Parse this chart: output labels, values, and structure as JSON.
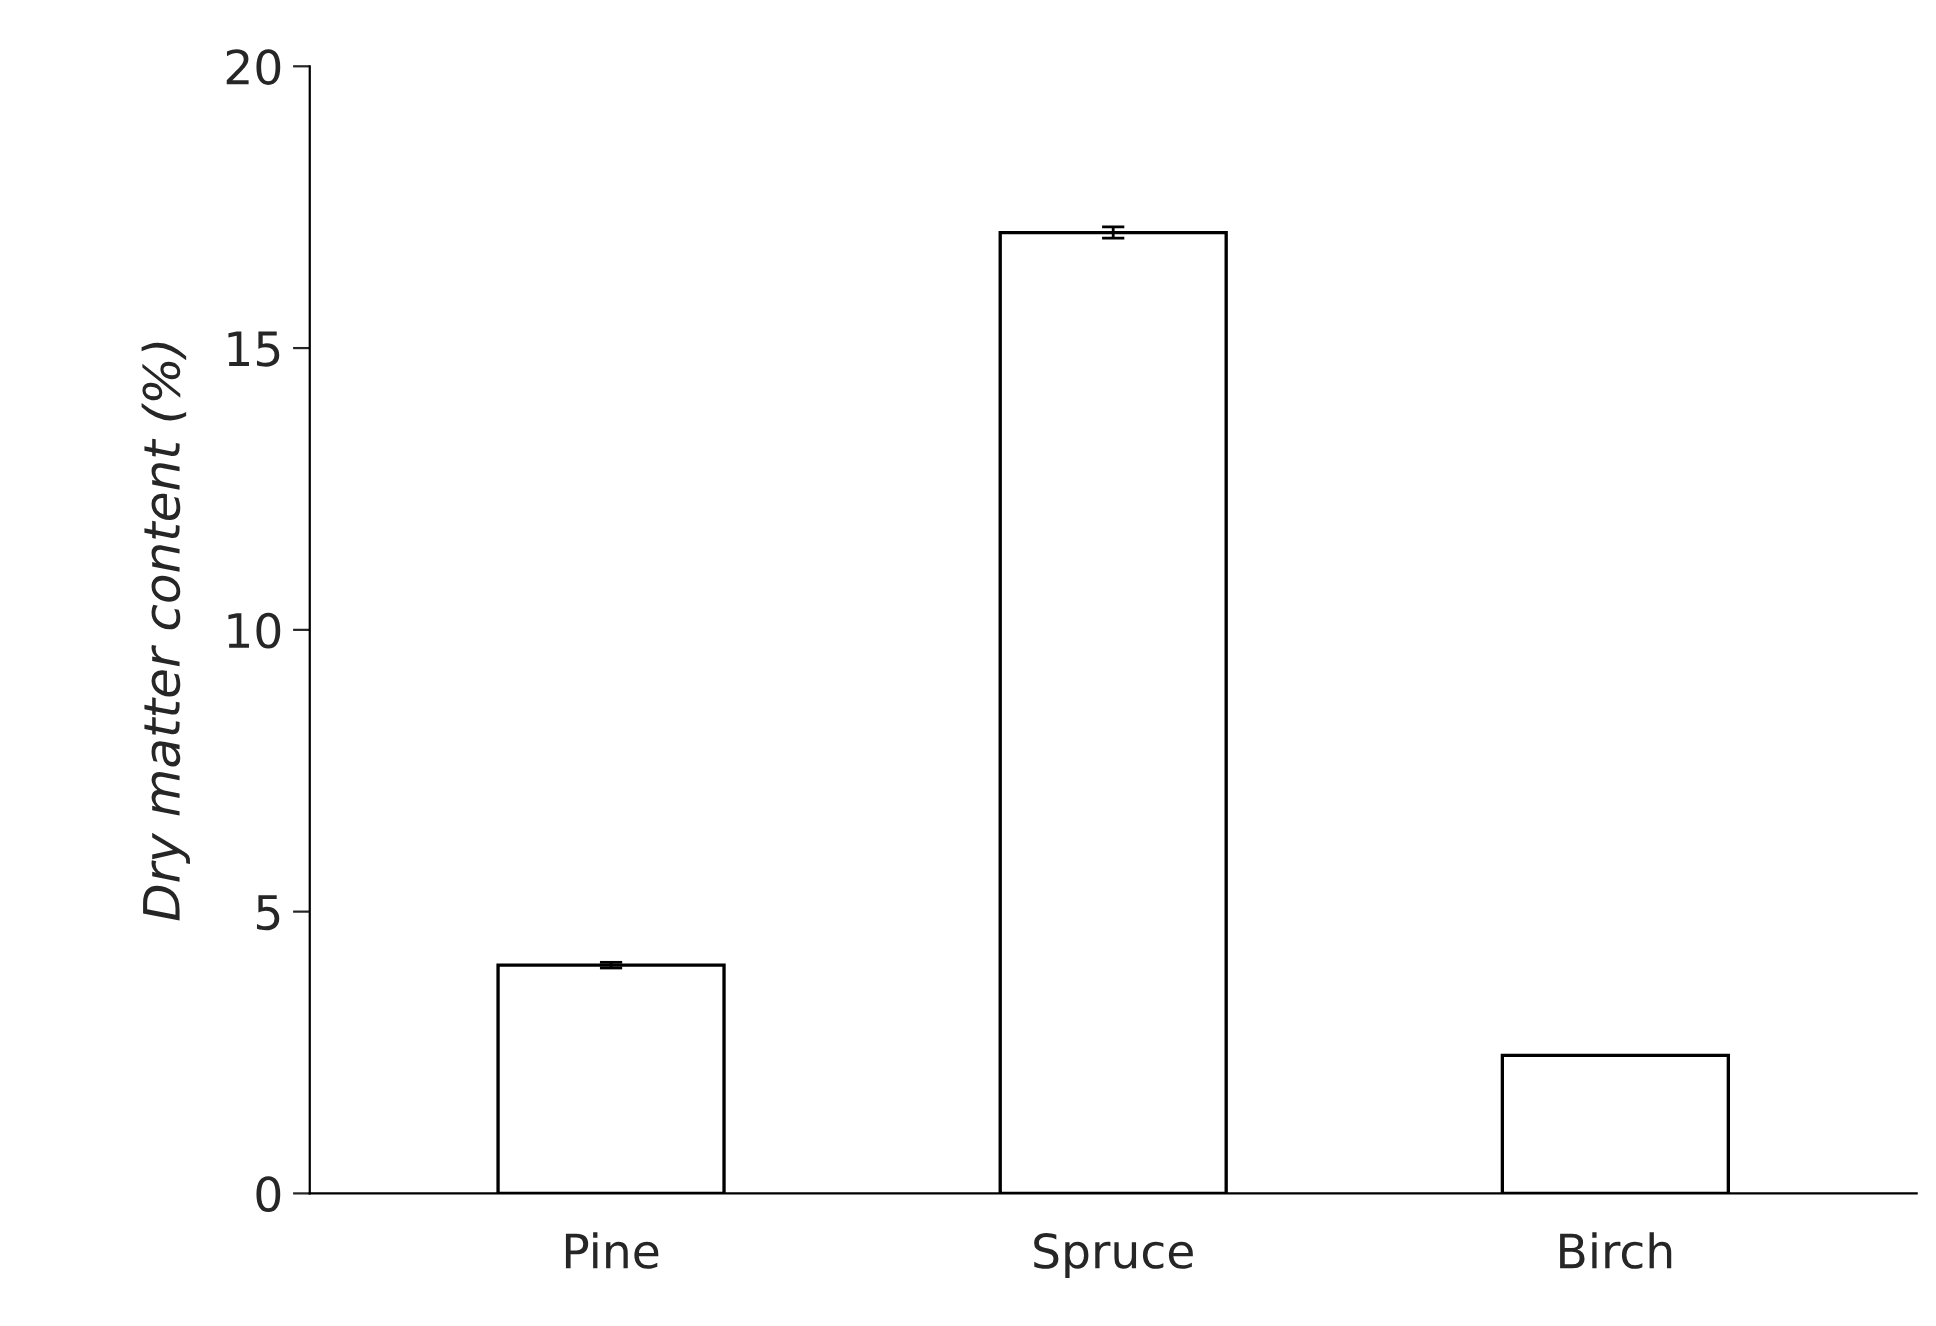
{
  "chart_data": {
    "type": "bar",
    "ylabel": "Dry matter content (%)",
    "categories": [
      "Pine",
      "Spruce",
      "Birch"
    ],
    "values": [
      4.05,
      17.05,
      2.45
    ],
    "errors": [
      0.05,
      0.1,
      null
    ],
    "colors": [
      "#ffffff",
      "#ffffff",
      "#ffffff"
    ],
    "ylim": [
      0,
      20
    ],
    "yticks": [
      0,
      5,
      10,
      15,
      20
    ],
    "grid": false,
    "legend": false
  }
}
